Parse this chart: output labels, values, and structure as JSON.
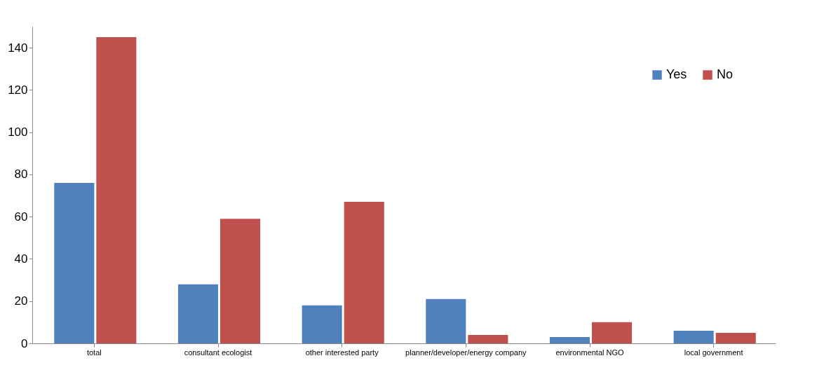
{
  "chart_data": {
    "type": "bar",
    "categories": [
      "total",
      "consultant ecologist",
      "other interested party",
      "planner/developer/energy company",
      "environmental NGO",
      "local government"
    ],
    "series": [
      {
        "name": "Yes",
        "color": "#4f81bd",
        "values": [
          76,
          28,
          18,
          21,
          3,
          6
        ]
      },
      {
        "name": "No",
        "color": "#c0504d",
        "values": [
          145,
          59,
          67,
          4,
          10,
          5
        ]
      }
    ],
    "ylim": [
      0,
      150
    ],
    "yticks": [
      0,
      20,
      40,
      60,
      80,
      100,
      120,
      140
    ],
    "grid": false,
    "legend": "top right"
  }
}
